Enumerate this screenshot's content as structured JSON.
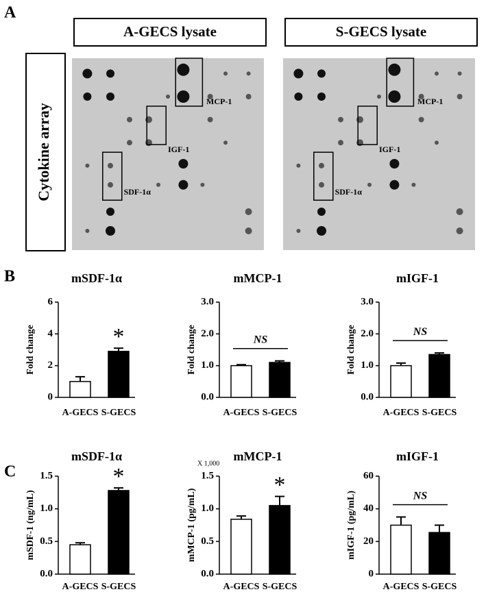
{
  "panels": {
    "a": "A",
    "b": "B",
    "c": "C"
  },
  "array": {
    "row_label": "Cytokine array",
    "images": [
      {
        "title": "A-GECS lysate",
        "labels": [
          "MCP-1",
          "IGF-1",
          "SDF-1α"
        ]
      },
      {
        "title": "S-GECS lysate",
        "labels": [
          "MCP-1",
          "IGF-1",
          "SDF-1α"
        ]
      }
    ]
  },
  "chart_data": [
    {
      "type": "bar",
      "title": "mSDF-1α",
      "ylabel": "Fold change",
      "categories": [
        "A-GECS",
        "S-GECS"
      ],
      "values": [
        1.0,
        2.9
      ],
      "errors": [
        0.3,
        0.2
      ],
      "colors": [
        "#ffffff",
        "#000000"
      ],
      "ylim": [
        0,
        6
      ],
      "yticks": [
        0,
        2,
        4,
        6
      ],
      "annotation": "*"
    },
    {
      "type": "bar",
      "title": "mMCP-1",
      "ylabel": "Fold change",
      "categories": [
        "A-GECS",
        "S-GECS"
      ],
      "values": [
        1.0,
        1.1
      ],
      "errors": [
        0.03,
        0.05
      ],
      "colors": [
        "#ffffff",
        "#000000"
      ],
      "ylim": [
        0,
        3
      ],
      "yticks": [
        {
          "value": 0,
          "label": "0.0"
        },
        {
          "value": 1,
          "label": "1.0"
        },
        {
          "value": 2,
          "label": "2.0"
        },
        {
          "value": 3,
          "label": "3.0"
        }
      ],
      "annotation": "NS"
    },
    {
      "type": "bar",
      "title": "mIGF-1",
      "ylabel": "Fold change",
      "categories": [
        "A-GECS",
        "S-GECS"
      ],
      "values": [
        1.0,
        1.35
      ],
      "errors": [
        0.08,
        0.05
      ],
      "colors": [
        "#ffffff",
        "#000000"
      ],
      "ylim": [
        0,
        3
      ],
      "yticks": [
        {
          "value": 0,
          "label": "0.0"
        },
        {
          "value": 1,
          "label": "1.0"
        },
        {
          "value": 2,
          "label": "2.0"
        },
        {
          "value": 3,
          "label": "3.0"
        }
      ],
      "annotation": "NS"
    },
    {
      "type": "bar",
      "title": "mSDF-1α",
      "ylabel": "mSDF-1 (ng/mL)",
      "categories": [
        "A-GECS",
        "S-GECS"
      ],
      "values": [
        0.45,
        1.28
      ],
      "errors": [
        0.03,
        0.04
      ],
      "colors": [
        "#ffffff",
        "#000000"
      ],
      "ylim": [
        0,
        1.5
      ],
      "yticks": [
        {
          "value": 0,
          "label": "0.0"
        },
        0.5,
        {
          "value": 1,
          "label": "1.0"
        },
        1.5
      ],
      "annotation": "*"
    },
    {
      "type": "bar",
      "title": "mMCP-1",
      "ylabel": "mMCP-1 (pg/mL)",
      "axis_note": "X 1,000",
      "categories": [
        "A-GECS",
        "S-GECS"
      ],
      "values": [
        0.84,
        1.05
      ],
      "errors": [
        0.05,
        0.14
      ],
      "colors": [
        "#ffffff",
        "#000000"
      ],
      "ylim": [
        0,
        1.5
      ],
      "yticks": [
        {
          "value": 0,
          "label": "0.0"
        },
        0.5,
        {
          "value": 1,
          "label": "1.0"
        },
        1.5
      ],
      "annotation": "*"
    },
    {
      "type": "bar",
      "title": "mIGF-1",
      "ylabel": "mIGF-1 (pg/mL)",
      "categories": [
        "A-GECS",
        "S-GECS"
      ],
      "values": [
        30,
        25.5
      ],
      "errors": [
        5,
        4.5
      ],
      "colors": [
        "#ffffff",
        "#000000"
      ],
      "ylim": [
        0,
        60
      ],
      "yticks": [
        0,
        20,
        40,
        60
      ],
      "annotation": "NS"
    }
  ]
}
